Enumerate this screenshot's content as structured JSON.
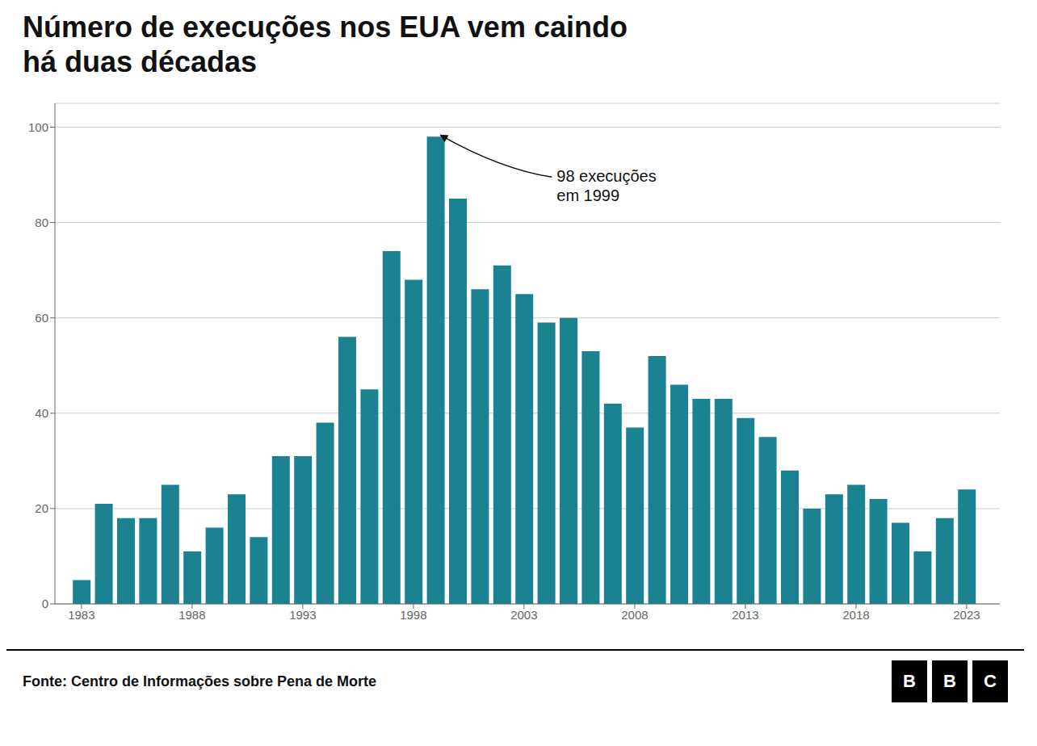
{
  "chart_data": {
    "type": "bar",
    "title": "Número de execuções nos EUA vem caindo\nhá duas décadas",
    "x": [
      1983,
      1984,
      1985,
      1986,
      1987,
      1988,
      1989,
      1990,
      1991,
      1992,
      1993,
      1994,
      1995,
      1996,
      1997,
      1998,
      1999,
      2000,
      2001,
      2002,
      2003,
      2004,
      2005,
      2006,
      2007,
      2008,
      2009,
      2010,
      2011,
      2012,
      2013,
      2014,
      2015,
      2016,
      2017,
      2018,
      2019,
      2020,
      2021,
      2022,
      2023
    ],
    "values": [
      5,
      21,
      18,
      18,
      25,
      11,
      16,
      23,
      14,
      31,
      31,
      38,
      56,
      45,
      74,
      68,
      98,
      85,
      66,
      71,
      65,
      59,
      60,
      53,
      42,
      37,
      52,
      46,
      43,
      43,
      39,
      35,
      28,
      20,
      23,
      25,
      22,
      17,
      11,
      18,
      24
    ],
    "color": "#1a8291",
    "xlim": [
      1981.8,
      2024.5
    ],
    "xticks": [
      1983,
      1988,
      1993,
      1998,
      2003,
      2008,
      2013,
      2018,
      2023
    ],
    "ylim": [
      0,
      105
    ],
    "yticks": [
      0,
      20,
      40,
      60,
      80,
      100
    ],
    "grid": true,
    "annotations": [
      {
        "text": "98 execuções\nem 1999",
        "x": 1999,
        "y": 98
      }
    ],
    "source": "Fonte: Centro de Informações sobre Pena de Morte",
    "logo": "BBC"
  }
}
